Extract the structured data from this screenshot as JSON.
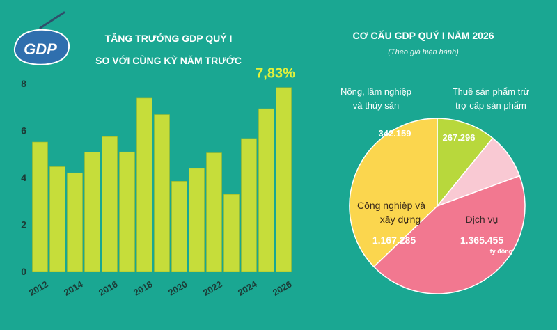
{
  "chart_data": [
    {
      "type": "bar",
      "title": "TĂNG TRƯỞNG GDP QUÝ I SO VỚI CÙNG KỲ NĂM TRƯỚC",
      "title_lines": [
        "TĂNG TRƯỞNG GDP QUÝ I",
        "SO VỚI CÙNG KỲ NĂM TRƯỚC"
      ],
      "logo_text": "GDP",
      "x_tick_labels": [
        "2012",
        "2014",
        "2016",
        "2018",
        "2020",
        "2022",
        "2024",
        "2026"
      ],
      "y_tick_labels": [
        "0",
        "2",
        "4",
        "6",
        "8"
      ],
      "ylim": [
        0,
        8
      ],
      "grid": false,
      "categories": [
        "2012",
        "2013",
        "2014",
        "2015",
        "2016",
        "2017",
        "2018",
        "2019",
        "2020",
        "2021",
        "2022",
        "2023",
        "2024",
        "2025",
        "2026"
      ],
      "values": [
        5.51,
        4.46,
        4.2,
        5.08,
        5.74,
        5.09,
        7.38,
        6.68,
        3.84,
        4.39,
        5.05,
        3.28,
        5.66,
        6.93,
        7.83
      ],
      "highlight_label": "7,83%",
      "bar_color": "#c6dd3a"
    },
    {
      "type": "pie",
      "title": "CƠ CẤU GDP QUÝ I NĂM 2026",
      "subtitle": "(Theo giá hiện hành)",
      "unit": "tỷ đồng",
      "slices": [
        {
          "label": "Nông, lâm nghiệp và thủy sản",
          "label_lines": [
            "Nông, lâm nghiệp",
            "và thủy sản"
          ],
          "value_text": "342.159",
          "value": 342159,
          "color": "#b8d83c"
        },
        {
          "label": "Thuế sản phẩm trừ trợ cấp sản phẩm",
          "label_lines": [
            "Thuế sản phẩm trừ",
            "trợ cấp sản phẩm"
          ],
          "value_text": "267.296",
          "value": 267296,
          "color": "#f9c9d3"
        },
        {
          "label": "Dịch vụ",
          "label_lines": [
            "Dịch vụ"
          ],
          "value_text": "1.365.455",
          "value": 1365455,
          "color": "#f27890"
        },
        {
          "label": "Công nghiệp và xây dựng",
          "label_lines": [
            "Công nghiệp và",
            "xây dựng"
          ],
          "value_text": "1.167.285",
          "value": 1167285,
          "color": "#fbd64e"
        }
      ]
    }
  ]
}
